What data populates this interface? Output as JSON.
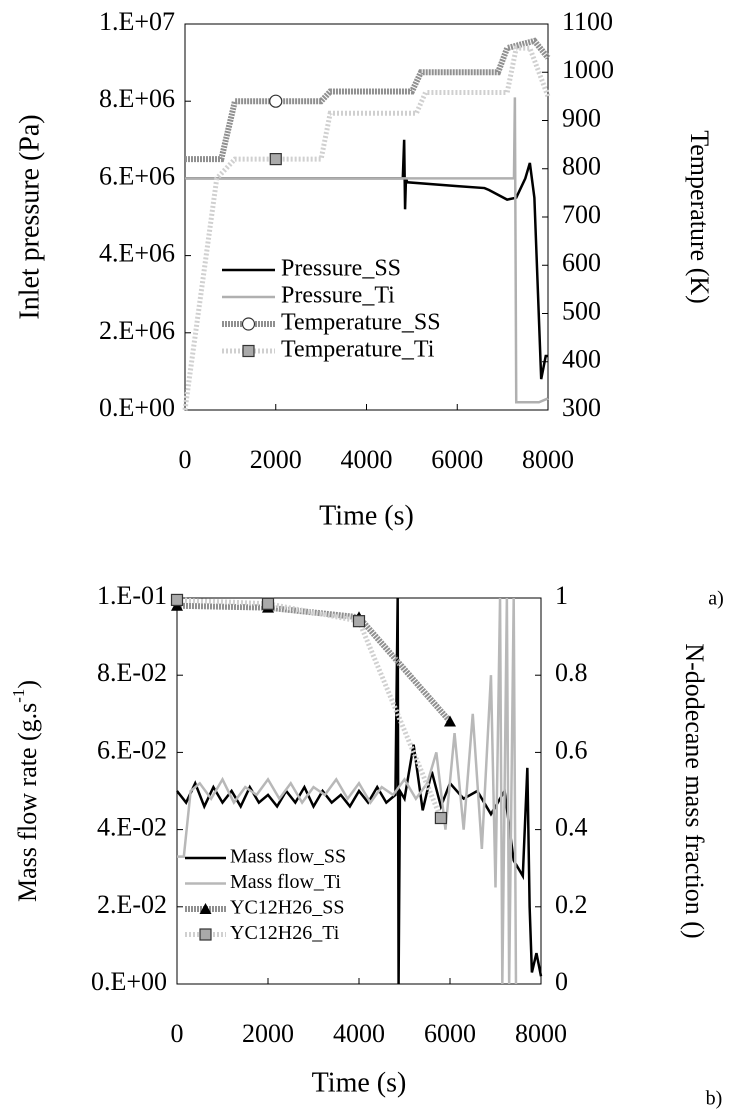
{
  "chart_data": [
    {
      "type": "line",
      "panel_label": "a)",
      "xlabel": "Time (s)",
      "ylabel": "Inlet pressure (Pa)",
      "y2label": "Temperature (K)",
      "xlim": [
        0,
        8000
      ],
      "xticks": [
        0,
        2000,
        4000,
        6000,
        8000
      ],
      "ylim": [
        0,
        10000000
      ],
      "yticks": [
        {
          "value": 0,
          "label": "0.E+00"
        },
        {
          "value": 2000000,
          "label": "2.E+06"
        },
        {
          "value": 4000000,
          "label": "4.E+06"
        },
        {
          "value": 6000000,
          "label": "6.E+06"
        },
        {
          "value": 8000000,
          "label": "8.E+06"
        },
        {
          "value": 10000000,
          "label": "1.E+07"
        }
      ],
      "y2lim": [
        300,
        1100
      ],
      "y2ticks": [
        300,
        400,
        500,
        600,
        700,
        800,
        900,
        1000,
        1100
      ],
      "legend": "center-left",
      "series": [
        {
          "name": "Pressure_SS",
          "color": "#000000",
          "style": "solid",
          "x": [
            0,
            4800,
            4830,
            4850,
            4870,
            4900,
            6000,
            6600,
            6700,
            7100,
            7300,
            7500,
            7600,
            7700,
            7850,
            7950,
            8000
          ],
          "values": [
            6000000,
            6000000,
            7000000,
            5200000,
            6000000,
            5900000,
            5800000,
            5750000,
            5700000,
            5450000,
            5500000,
            6000000,
            6400000,
            5500000,
            800000,
            1400000,
            1400000
          ]
        },
        {
          "name": "Pressure_Ti",
          "color": "#b0b0b0",
          "style": "solid",
          "x": [
            0,
            7250,
            7270,
            7300,
            7800,
            8000
          ],
          "values": [
            6000000,
            6000000,
            8100000,
            200000,
            200000,
            300000
          ]
        },
        {
          "name": "Temperature_SS",
          "color": "#909090",
          "style": "hatched",
          "axis": "y2",
          "marker": "circle",
          "marker_x": 2000,
          "x": [
            0,
            800,
            1100,
            2000,
            3000,
            3200,
            5000,
            5200,
            6900,
            7100,
            7700,
            8000
          ],
          "values": [
            820,
            820,
            940,
            940,
            940,
            960,
            960,
            1000,
            1000,
            1050,
            1065,
            1030
          ]
        },
        {
          "name": "Temperature_Ti",
          "color": "#d0d0d0",
          "style": "dotted",
          "axis": "y2",
          "marker": "square",
          "marker_x": 2000,
          "x": [
            0,
            700,
            1100,
            2000,
            3000,
            3200,
            5100,
            5300,
            7100,
            7300,
            7600,
            8000
          ],
          "values": [
            300,
            780,
            820,
            820,
            820,
            915,
            915,
            958,
            958,
            1050,
            1050,
            950
          ]
        }
      ]
    },
    {
      "type": "line",
      "panel_label": "b)",
      "xlabel": "Time (s)",
      "ylabel": [
        "Mass flow rate (g.s",
        "-1",
        ")"
      ],
      "y2label": "N-dodecane mass fraction ()",
      "xlim": [
        0,
        8000
      ],
      "xticks": [
        0,
        2000,
        4000,
        6000,
        8000
      ],
      "ylim": [
        0,
        0.1
      ],
      "yticks": [
        {
          "value": 0,
          "label": "0.E+00"
        },
        {
          "value": 0.02,
          "label": "2.E-02"
        },
        {
          "value": 0.04,
          "label": "4.E-02"
        },
        {
          "value": 0.06,
          "label": "6.E-02"
        },
        {
          "value": 0.08,
          "label": "8.E-02"
        },
        {
          "value": 0.1,
          "label": "1.E-01"
        }
      ],
      "y2lim": [
        0,
        1
      ],
      "y2ticks": [
        0,
        0.2,
        0.4,
        0.6,
        0.8,
        1
      ],
      "legend": "lower-left",
      "series": [
        {
          "name": "Mass flow_SS",
          "color": "#000000",
          "style": "solid",
          "x": [
            0,
            200,
            400,
            600,
            800,
            1000,
            1200,
            1400,
            1600,
            1800,
            2000,
            2200,
            2400,
            2600,
            2800,
            3000,
            3200,
            3400,
            3600,
            3800,
            4000,
            4200,
            4400,
            4600,
            4800,
            4850,
            4870,
            4900,
            5000,
            5200,
            5400,
            5600,
            5800,
            6000,
            6300,
            6600,
            6900,
            7200,
            7400,
            7600,
            7700,
            7750,
            7800,
            7900,
            8000
          ],
          "values": [
            0.05,
            0.047,
            0.052,
            0.046,
            0.051,
            0.047,
            0.05,
            0.046,
            0.051,
            0.047,
            0.049,
            0.046,
            0.05,
            0.047,
            0.051,
            0.046,
            0.05,
            0.047,
            0.049,
            0.046,
            0.05,
            0.047,
            0.051,
            0.047,
            0.049,
            0.1,
            0,
            0.05,
            0.048,
            0.062,
            0.045,
            0.055,
            0.046,
            0.052,
            0.048,
            0.05,
            0.044,
            0.05,
            0.032,
            0.028,
            0.056,
            0.02,
            0.003,
            0.008,
            0.002
          ]
        },
        {
          "name": "Mass flow_Ti",
          "color": "#b8b8b8",
          "style": "solid",
          "x": [
            0,
            150,
            300,
            500,
            750,
            1000,
            1250,
            1500,
            1750,
            2000,
            2250,
            2500,
            2750,
            3000,
            3250,
            3500,
            3750,
            4000,
            4250,
            4500,
            4750,
            5000,
            5250,
            5500,
            5700,
            5900,
            6100,
            6300,
            6500,
            6700,
            6900,
            7000,
            7100,
            7150,
            7250,
            7300,
            7400,
            7450
          ],
          "values": [
            0.033,
            0.033,
            0.05,
            0.052,
            0.048,
            0.053,
            0.047,
            0.051,
            0.049,
            0.053,
            0.048,
            0.052,
            0.047,
            0.051,
            0.049,
            0.053,
            0.048,
            0.052,
            0.047,
            0.051,
            0.049,
            0.053,
            0.048,
            0.052,
            0.06,
            0.04,
            0.065,
            0.04,
            0.07,
            0.035,
            0.08,
            0.025,
            0.1,
            0,
            0.1,
            0,
            0.1,
            0
          ]
        },
        {
          "name": "YC12H26_SS",
          "color": "#909090",
          "style": "hatched",
          "axis": "y2",
          "marker": "triangle",
          "x": [
            0,
            2000,
            4000,
            6000
          ],
          "values": [
            0.98,
            0.975,
            0.95,
            0.68
          ]
        },
        {
          "name": "YC12H26_Ti",
          "color": "#d0d0d0",
          "style": "dotted",
          "axis": "y2",
          "marker": "square",
          "x": [
            0,
            2000,
            4000,
            5800
          ],
          "values": [
            0.995,
            0.985,
            0.94,
            0.43
          ]
        }
      ]
    }
  ]
}
